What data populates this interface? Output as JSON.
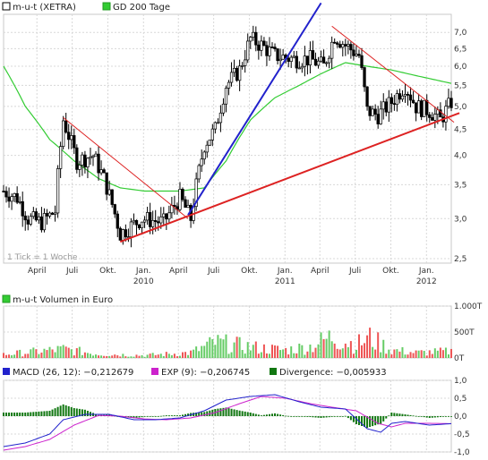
{
  "chart_data": [
    {
      "type": "candlestick",
      "legend": [
        {
          "name": "m-u-t (XETRA)",
          "color": "#000000"
        },
        {
          "name": "GD 200 Tage",
          "color": "#33cc33"
        }
      ],
      "annotation": "1 Tick = 1 Woche",
      "yscale": "log",
      "ylim": [
        2.45,
        7.6
      ],
      "y_ticks": [
        "7,0",
        "6,5",
        "6,0",
        "5,5",
        "5,0",
        "4,5",
        "4,0",
        "3,5",
        "3,0",
        "2,5"
      ],
      "y_tick_values": [
        7.0,
        6.5,
        6.0,
        5.5,
        5.0,
        4.5,
        4.0,
        3.5,
        3.0,
        2.5
      ],
      "x_ticks": [
        {
          "label": "April",
          "date": "2009-04-01"
        },
        {
          "label": "Juli",
          "date": "2009-07-01"
        },
        {
          "label": "Okt.",
          "date": "2009-10-01"
        },
        {
          "label": "Jan.",
          "year": "2010",
          "date": "2010-01-01"
        },
        {
          "label": "April",
          "date": "2010-04-01"
        },
        {
          "label": "Juli",
          "date": "2010-07-01"
        },
        {
          "label": "Okt.",
          "date": "2010-10-01"
        },
        {
          "label": "Jan.",
          "year": "2011",
          "date": "2011-01-01"
        },
        {
          "label": "April",
          "date": "2011-04-01"
        },
        {
          "label": "Juli",
          "date": "2011-07-01"
        },
        {
          "label": "Okt.",
          "date": "2011-10-01"
        },
        {
          "label": "Jan.",
          "year": "2012",
          "date": "2012-01-01"
        }
      ],
      "xlim": [
        "2009-01-05",
        "2012-03-05"
      ],
      "price_keypoints": [
        [
          "2009-01-05",
          3.4
        ],
        [
          "2009-02-09",
          3.3
        ],
        [
          "2009-03-09",
          3.0
        ],
        [
          "2009-04-13",
          2.95
        ],
        [
          "2009-05-18",
          3.1
        ],
        [
          "2009-06-08",
          4.7
        ],
        [
          "2009-07-13",
          3.9
        ],
        [
          "2009-08-24",
          4.0
        ],
        [
          "2009-09-21",
          3.6
        ],
        [
          "2009-11-02",
          2.8
        ],
        [
          "2009-12-28",
          3.0
        ],
        [
          "2010-02-22",
          2.95
        ],
        [
          "2010-04-05",
          3.3
        ],
        [
          "2010-05-03",
          3.0
        ],
        [
          "2010-06-07",
          4.2
        ],
        [
          "2010-07-05",
          4.5
        ],
        [
          "2010-08-02",
          5.5
        ],
        [
          "2010-09-06",
          5.9
        ],
        [
          "2010-10-04",
          6.8
        ],
        [
          "2010-11-01",
          6.6
        ],
        [
          "2010-12-06",
          6.3
        ],
        [
          "2011-01-24",
          6.2
        ],
        [
          "2011-03-07",
          6.2
        ],
        [
          "2011-04-11",
          6.0
        ],
        [
          "2011-05-09",
          6.9
        ],
        [
          "2011-06-06",
          6.6
        ],
        [
          "2011-07-11",
          6.3
        ],
        [
          "2011-08-01",
          4.9
        ],
        [
          "2011-08-29",
          4.8
        ],
        [
          "2011-10-03",
          5.1
        ],
        [
          "2011-11-07",
          5.5
        ],
        [
          "2011-12-05",
          5.0
        ],
        [
          "2012-01-09",
          4.9
        ],
        [
          "2012-02-06",
          4.7
        ],
        [
          "2012-03-05",
          5.1
        ]
      ],
      "ma200_keypoints": [
        [
          "2009-01-05",
          6.0
        ],
        [
          "2009-03-02",
          5.0
        ],
        [
          "2009-05-04",
          4.3
        ],
        [
          "2009-07-06",
          3.9
        ],
        [
          "2009-09-07",
          3.6
        ],
        [
          "2009-11-02",
          3.45
        ],
        [
          "2010-01-04",
          3.4
        ],
        [
          "2010-04-05",
          3.4
        ],
        [
          "2010-06-07",
          3.45
        ],
        [
          "2010-08-02",
          3.9
        ],
        [
          "2010-10-04",
          4.7
        ],
        [
          "2010-12-06",
          5.2
        ],
        [
          "2011-02-07",
          5.5
        ],
        [
          "2011-04-04",
          5.8
        ],
        [
          "2011-06-06",
          6.1
        ],
        [
          "2011-08-01",
          6.0
        ],
        [
          "2011-10-03",
          5.9
        ],
        [
          "2011-12-05",
          5.75
        ],
        [
          "2012-03-05",
          5.55
        ]
      ],
      "trendlines": [
        {
          "color": "#dd2222",
          "width": 2,
          "from": [
            "2009-11-02",
            2.7
          ],
          "to": [
            "2012-03-26",
            4.85
          ]
        },
        {
          "color": "#2222cc",
          "width": 2,
          "from": [
            "2010-04-26",
            3.05
          ],
          "to": [
            "2011-04-04",
            8.0
          ]
        },
        {
          "color": "#dd2222",
          "width": 1,
          "from": [
            "2009-06-08",
            4.75
          ],
          "to": [
            "2010-04-26",
            3.0
          ]
        },
        {
          "color": "#dd2222",
          "width": 1,
          "from": [
            "2011-05-02",
            7.2
          ],
          "to": [
            "2012-03-12",
            4.65
          ]
        }
      ]
    },
    {
      "type": "bar",
      "legend": [
        {
          "name": "m-u-t Volumen in Euro",
          "color": "#33cc33"
        }
      ],
      "y_ticks": [
        "1.000T",
        "500T",
        "0T"
      ],
      "y_tick_values": [
        1000,
        500,
        0
      ],
      "ylim": [
        0,
        1000
      ],
      "colors": {
        "up": "#66cc66",
        "down": "#ee5555"
      },
      "volume_keypoints": [
        [
          "2009-01-05",
          80
        ],
        [
          "2009-06-08",
          200
        ],
        [
          "2009-09-07",
          90
        ],
        [
          "2010-01-04",
          60
        ],
        [
          "2010-05-03",
          120
        ],
        [
          "2010-07-05",
          350
        ],
        [
          "2010-09-06",
          280
        ],
        [
          "2010-11-01",
          220
        ],
        [
          "2011-01-03",
          180
        ],
        [
          "2011-03-07",
          260
        ],
        [
          "2011-05-02",
          480
        ],
        [
          "2011-07-04",
          300
        ],
        [
          "2011-08-08",
          450
        ],
        [
          "2011-10-03",
          180
        ],
        [
          "2011-12-05",
          120
        ],
        [
          "2012-03-05",
          150
        ]
      ]
    },
    {
      "type": "line",
      "legend": [
        {
          "name": "MACD (26, 12): −0,212679",
          "color": "#2222cc"
        },
        {
          "name": "EXP (9): −0,206745",
          "color": "#cc22cc"
        },
        {
          "name": "Divergence: −0,005933",
          "color": "#117711"
        }
      ],
      "y_ticks": [
        "1,0",
        "0,5",
        "0,0",
        "-0,5",
        "-1,0"
      ],
      "y_tick_values": [
        1.0,
        0.5,
        0.0,
        -0.5,
        -1.0
      ],
      "ylim": [
        -1.0,
        1.0
      ],
      "macd_keypoints": [
        [
          "2009-01-05",
          -0.85
        ],
        [
          "2009-03-02",
          -0.75
        ],
        [
          "2009-05-04",
          -0.5
        ],
        [
          "2009-06-08",
          -0.1
        ],
        [
          "2009-08-03",
          0.05
        ],
        [
          "2009-10-05",
          0.05
        ],
        [
          "2009-12-07",
          -0.1
        ],
        [
          "2010-02-01",
          -0.1
        ],
        [
          "2010-04-05",
          -0.05
        ],
        [
          "2010-06-07",
          0.15
        ],
        [
          "2010-08-02",
          0.45
        ],
        [
          "2010-10-04",
          0.55
        ],
        [
          "2010-12-06",
          0.6
        ],
        [
          "2011-02-07",
          0.4
        ],
        [
          "2011-04-04",
          0.25
        ],
        [
          "2011-06-06",
          0.2
        ],
        [
          "2011-08-01",
          -0.35
        ],
        [
          "2011-09-05",
          -0.45
        ],
        [
          "2011-10-03",
          -0.2
        ],
        [
          "2011-11-07",
          -0.15
        ],
        [
          "2012-01-09",
          -0.25
        ],
        [
          "2012-03-05",
          -0.21
        ]
      ],
      "exp_keypoints": [
        [
          "2009-01-05",
          -0.95
        ],
        [
          "2009-03-02",
          -0.85
        ],
        [
          "2009-05-04",
          -0.65
        ],
        [
          "2009-07-06",
          -0.25
        ],
        [
          "2009-09-07",
          0.02
        ],
        [
          "2009-11-02",
          0.0
        ],
        [
          "2010-01-04",
          -0.08
        ],
        [
          "2010-03-01",
          -0.1
        ],
        [
          "2010-05-03",
          -0.05
        ],
        [
          "2010-07-05",
          0.1
        ],
        [
          "2010-09-06",
          0.35
        ],
        [
          "2010-11-01",
          0.55
        ],
        [
          "2011-01-03",
          0.5
        ],
        [
          "2011-03-07",
          0.35
        ],
        [
          "2011-05-02",
          0.25
        ],
        [
          "2011-07-04",
          0.15
        ],
        [
          "2011-08-29",
          -0.2
        ],
        [
          "2011-10-03",
          -0.3
        ],
        [
          "2011-11-07",
          -0.2
        ],
        [
          "2012-01-09",
          -0.2
        ],
        [
          "2012-03-05",
          -0.21
        ]
      ]
    }
  ]
}
